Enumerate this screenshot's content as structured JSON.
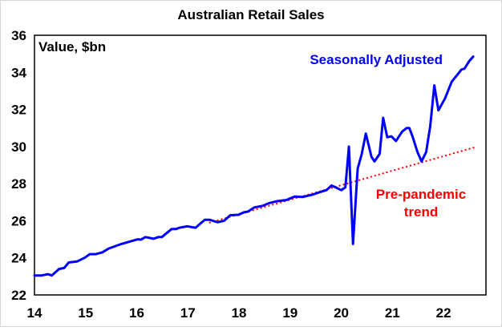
{
  "chart_data": {
    "type": "line",
    "title": "Australian Retail Sales",
    "ylabel": "Value, $bn",
    "xlabel": "",
    "xlim": [
      14,
      22.83
    ],
    "ylim": [
      22,
      36
    ],
    "x_ticks": [
      "14",
      "15",
      "16",
      "17",
      "18",
      "19",
      "20",
      "21",
      "22"
    ],
    "y_ticks": [
      "22",
      "24",
      "26",
      "28",
      "30",
      "32",
      "34",
      "36"
    ],
    "grid": false,
    "colors": {
      "series": "#0000ff",
      "trend": "#ff0000",
      "axis": "#000000"
    },
    "series": [
      {
        "name": "Seasonally Adjusted",
        "style": "solid",
        "x": [
          14.0,
          14.14,
          14.26,
          14.34,
          14.48,
          14.58,
          14.67,
          14.83,
          14.98,
          15.08,
          15.2,
          15.33,
          15.45,
          15.7,
          15.89,
          16.02,
          16.08,
          16.17,
          16.33,
          16.42,
          16.49,
          16.68,
          16.77,
          16.83,
          16.99,
          17.15,
          17.33,
          17.43,
          17.58,
          17.71,
          17.83,
          17.99,
          18.09,
          18.18,
          18.3,
          18.46,
          18.59,
          18.74,
          18.93,
          19.09,
          19.24,
          19.43,
          19.59,
          19.71,
          19.81,
          19.89,
          20.0,
          20.08,
          20.15,
          20.23,
          20.32,
          20.4,
          20.48,
          20.59,
          20.65,
          20.75,
          20.82,
          20.9,
          20.98,
          21.07,
          21.19,
          21.28,
          21.33,
          21.4,
          21.49,
          21.57,
          21.66,
          21.74,
          21.82,
          21.9,
          22.03,
          22.16,
          22.28,
          22.35,
          22.41,
          22.5,
          22.58
        ],
        "y": [
          23.05,
          23.05,
          23.12,
          23.05,
          23.4,
          23.45,
          23.75,
          23.8,
          24.0,
          24.2,
          24.2,
          24.3,
          24.5,
          24.75,
          24.9,
          25.0,
          24.98,
          25.12,
          25.03,
          25.12,
          25.12,
          25.55,
          25.55,
          25.62,
          25.7,
          25.62,
          26.05,
          26.05,
          25.92,
          26.0,
          26.3,
          26.32,
          26.45,
          26.5,
          26.72,
          26.8,
          26.95,
          27.05,
          27.12,
          27.3,
          27.28,
          27.4,
          27.55,
          27.65,
          27.9,
          27.8,
          27.65,
          27.8,
          30.0,
          24.75,
          28.8,
          29.6,
          30.7,
          29.45,
          29.2,
          29.6,
          31.55,
          30.5,
          30.55,
          30.3,
          30.8,
          31.0,
          31.0,
          30.5,
          29.7,
          29.2,
          29.7,
          31.1,
          33.3,
          31.95,
          32.6,
          33.5,
          33.9,
          34.15,
          34.2,
          34.6,
          34.85
        ]
      },
      {
        "name": "Pre-pandemic trend",
        "style": "dotted",
        "x": [
          17.43,
          22.66
        ],
        "y": [
          25.9,
          30.0
        ]
      }
    ],
    "annotations": {
      "unit_label": "Value, $bn",
      "series_label": "Seasonally Adjusted",
      "trend_label_line1": "Pre-pandemic",
      "trend_label_line2": "trend"
    }
  }
}
